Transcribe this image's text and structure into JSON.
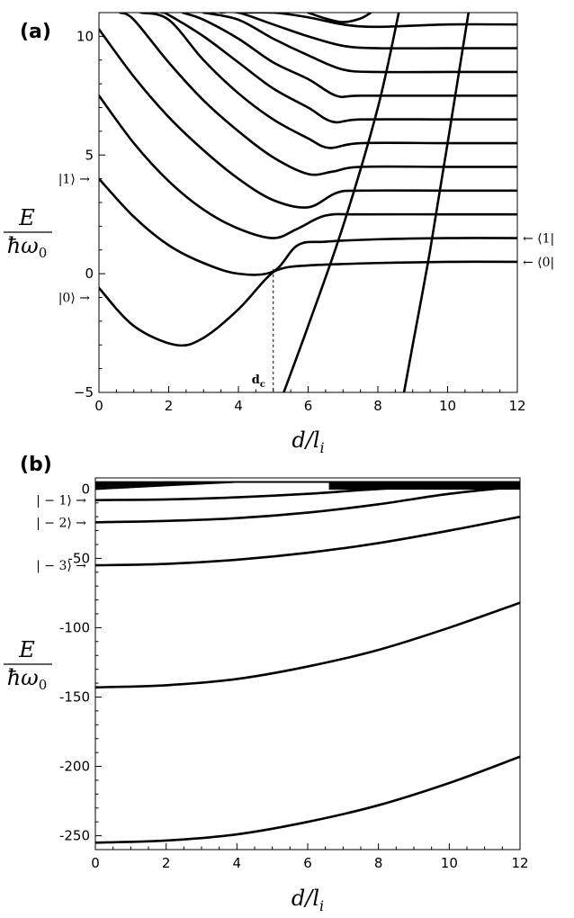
{
  "chart_data": [
    {
      "type": "line",
      "panel_label": "(a)",
      "xlabel": "d/l_i",
      "xlabel_main": "d/l",
      "xlabel_sub": "i",
      "ylabel_num": "E",
      "ylabel_den": "ħω0",
      "ylabel_den_main": "ħω",
      "ylabel_den_sub": "0",
      "xlim": [
        0,
        12
      ],
      "ylim": [
        -5,
        11
      ],
      "xticks": [
        "0",
        "2",
        "4",
        "6",
        "8",
        "10",
        "12"
      ],
      "yticks": [
        "−5",
        "0",
        "5",
        "10"
      ],
      "ytick_values": [
        -5,
        0,
        5,
        10
      ],
      "left_labels": [
        {
          "text": "|1⟩ →",
          "y": 4
        },
        {
          "text": "|0⟩ →",
          "y": -1
        }
      ],
      "right_labels": [
        {
          "text": "← ⟨1|",
          "y": 1.5
        },
        {
          "text": "← ⟨0|",
          "y": 0.5
        }
      ],
      "annotation": {
        "text": "d",
        "sub": "c",
        "x": 5.0
      },
      "series": [
        {
          "x": [
            0,
            1,
            2.2,
            3,
            4,
            4.8,
            5.2,
            6,
            8,
            10,
            12
          ],
          "y": [
            -0.6,
            -2.2,
            -3.0,
            -2.7,
            -1.5,
            -0.2,
            0.2,
            0.35,
            0.45,
            0.5,
            0.5
          ]
        },
        {
          "x": [
            0,
            1,
            2,
            3,
            4,
            5,
            5.7,
            6.5,
            8,
            10,
            12
          ],
          "y": [
            4.0,
            2.4,
            1.2,
            0.45,
            0.0,
            0.1,
            1.2,
            1.35,
            1.45,
            1.5,
            1.5
          ]
        },
        {
          "x": [
            0,
            1,
            2,
            3,
            4,
            5,
            5.7,
            6.5,
            7.5,
            10,
            12
          ],
          "y": [
            7.5,
            5.5,
            3.9,
            2.7,
            1.9,
            1.5,
            1.9,
            2.45,
            2.5,
            2.5,
            2.5
          ]
        },
        {
          "x": [
            0,
            1,
            2,
            3,
            4,
            5,
            6,
            6.8,
            7.5,
            10,
            12
          ],
          "y": [
            10.3,
            8.3,
            6.6,
            5.2,
            4.0,
            3.1,
            2.8,
            3.4,
            3.5,
            3.5,
            3.5
          ]
        },
        {
          "x": [
            0.6,
            1,
            2,
            3,
            4,
            5,
            6,
            6.7,
            7.5,
            10,
            12
          ],
          "y": [
            11.0,
            10.7,
            8.9,
            7.3,
            6.0,
            4.9,
            4.2,
            4.3,
            4.5,
            4.5,
            4.5
          ]
        },
        {
          "x": [
            1.2,
            2,
            3,
            4,
            5,
            6,
            6.6,
            7.5,
            10,
            12
          ],
          "y": [
            11.0,
            10.7,
            9.0,
            7.6,
            6.5,
            5.7,
            5.3,
            5.5,
            5.5,
            5.5
          ]
        },
        {
          "x": [
            1.8,
            2,
            3,
            4,
            5,
            6,
            6.7,
            7.5,
            10,
            12
          ],
          "y": [
            11.0,
            10.9,
            10.0,
            8.9,
            7.8,
            7.0,
            6.4,
            6.5,
            6.5,
            6.5
          ]
        },
        {
          "x": [
            2.4,
            3,
            4,
            5,
            6,
            6.8,
            7.5,
            10,
            12
          ],
          "y": [
            11.0,
            10.7,
            9.9,
            8.9,
            8.2,
            7.5,
            7.5,
            7.5,
            7.5
          ]
        },
        {
          "x": [
            3.0,
            4,
            5,
            6,
            7,
            8,
            10,
            12
          ],
          "y": [
            11.0,
            10.7,
            9.9,
            9.2,
            8.6,
            8.5,
            8.5,
            8.5
          ]
        },
        {
          "x": [
            3.5,
            4,
            5,
            6,
            7,
            8,
            10,
            12
          ],
          "y": [
            11.0,
            11.0,
            10.5,
            10.0,
            9.6,
            9.5,
            9.5,
            9.5
          ]
        },
        {
          "x": [
            4.0,
            5,
            6,
            7,
            8,
            10,
            12
          ],
          "y": [
            11.0,
            11.0,
            10.8,
            10.5,
            10.4,
            10.5,
            10.5
          ]
        },
        {
          "x": [
            6.0,
            6.5,
            7,
            7.5,
            7.8
          ],
          "y": [
            11.0,
            10.75,
            10.6,
            10.75,
            11.0
          ]
        },
        {
          "x": [
            5.3,
            6,
            7,
            8,
            8.6
          ],
          "y": [
            -5.0,
            -2.2,
            2.0,
            7.0,
            11.0
          ]
        },
        {
          "x": [
            8.75,
            9,
            9.5,
            10,
            10.6
          ],
          "y": [
            -5.0,
            -3.0,
            1.0,
            5.5,
            11.0
          ]
        }
      ]
    },
    {
      "type": "line",
      "panel_label": "(b)",
      "xlabel": "d/l_i",
      "xlabel_main": "d/l",
      "xlabel_sub": "i",
      "ylabel_num": "E",
      "ylabel_den": "ħω0",
      "ylabel_den_main": "ħω",
      "ylabel_den_sub": "0",
      "xlim": [
        0,
        12
      ],
      "ylim": [
        -260,
        8
      ],
      "xticks": [
        "0",
        "2",
        "4",
        "6",
        "8",
        "10",
        "12"
      ],
      "yticks": [
        "0",
        "-50",
        "-100",
        "-150",
        "-200",
        "-250"
      ],
      "ytick_values": [
        0,
        -50,
        -100,
        -150,
        -200,
        -250
      ],
      "left_labels": [
        {
          "text": "| − 1⟩ →",
          "y": -8
        },
        {
          "text": "| − 2⟩ →",
          "y": -24
        },
        {
          "text": "| − 3⟩ →",
          "y": -55
        }
      ],
      "series": [
        {
          "x": [
            0,
            2,
            4,
            6,
            8,
            10,
            12
          ],
          "y": [
            -8.0,
            -7.5,
            -6.0,
            -3.5,
            0,
            2,
            3
          ]
        },
        {
          "x": [
            0,
            2,
            4,
            6,
            8,
            10,
            12
          ],
          "y": [
            -24.0,
            -23.0,
            -21.0,
            -17.0,
            -11.0,
            -3.5,
            2.0
          ]
        },
        {
          "x": [
            0,
            2,
            4,
            6,
            8,
            10,
            12
          ],
          "y": [
            -55.0,
            -54.0,
            -51.0,
            -46.0,
            -39.0,
            -30.0,
            -20.0
          ]
        },
        {
          "x": [
            0,
            2,
            4,
            6,
            8,
            10,
            12
          ],
          "y": [
            -143.0,
            -141.5,
            -137.0,
            -128.0,
            -116.0,
            -100.0,
            -82.0
          ]
        },
        {
          "x": [
            0,
            2,
            4,
            6,
            8,
            10,
            12
          ],
          "y": [
            -255.0,
            -253.5,
            -249.0,
            -240.0,
            -228.0,
            -212.0,
            -193.0
          ]
        }
      ]
    }
  ]
}
